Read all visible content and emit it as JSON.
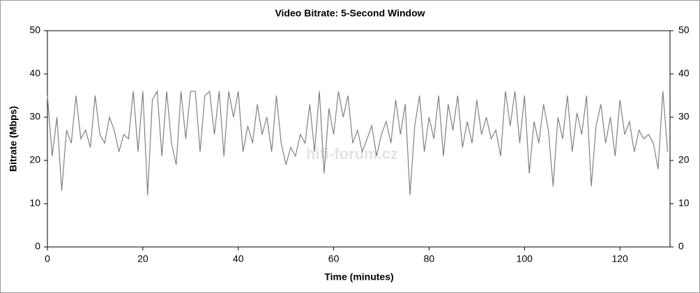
{
  "chart_data": {
    "type": "line",
    "title": "Video Bitrate: 5-Second Window",
    "x_label": "Time (minutes)",
    "y_label": "Bitrate (Mbps)",
    "watermark": "hifi-forum.cz",
    "x": [
      0,
      1,
      2,
      3,
      4,
      5,
      6,
      7,
      8,
      9,
      10,
      11,
      12,
      13,
      14,
      15,
      16,
      17,
      18,
      19,
      20,
      21,
      22,
      23,
      24,
      25,
      26,
      27,
      28,
      29,
      30,
      31,
      32,
      33,
      34,
      35,
      36,
      37,
      38,
      39,
      40,
      41,
      42,
      43,
      44,
      45,
      46,
      47,
      48,
      49,
      50,
      51,
      52,
      53,
      54,
      55,
      56,
      57,
      58,
      59,
      60,
      61,
      62,
      63,
      64,
      65,
      66,
      67,
      68,
      69,
      70,
      71,
      72,
      73,
      74,
      75,
      76,
      77,
      78,
      79,
      80,
      81,
      82,
      83,
      84,
      85,
      86,
      87,
      88,
      89,
      90,
      91,
      92,
      93,
      94,
      95,
      96,
      97,
      98,
      99,
      100,
      101,
      102,
      103,
      104,
      105,
      106,
      107,
      108,
      109,
      110,
      111,
      112,
      113,
      114,
      115,
      116,
      117,
      118,
      119,
      120,
      121,
      122,
      123,
      124,
      125,
      126,
      127,
      128,
      129,
      130
    ],
    "series": [
      {
        "name": "Video Bitrate",
        "color": "#808080",
        "values": [
          35,
          21,
          30,
          13,
          27,
          24,
          35,
          25,
          27,
          23,
          35,
          26,
          24,
          30,
          27,
          22,
          26,
          25,
          36,
          22,
          36,
          12,
          34,
          36,
          21,
          36,
          24,
          19,
          36,
          25,
          36,
          36,
          22,
          35,
          36,
          26,
          36,
          21,
          36,
          30,
          36,
          22,
          28,
          24,
          33,
          26,
          30,
          22,
          35,
          24,
          19,
          23,
          21,
          26,
          24,
          33,
          22,
          36,
          17,
          32,
          26,
          36,
          30,
          35,
          24,
          27,
          22,
          25,
          28,
          21,
          26,
          29,
          24,
          34,
          26,
          33,
          12,
          28,
          35,
          22,
          30,
          25,
          35,
          21,
          33,
          27,
          35,
          23,
          29,
          24,
          34,
          26,
          30,
          25,
          27,
          21,
          36,
          28,
          36,
          24,
          35,
          17,
          29,
          24,
          33,
          27,
          14,
          30,
          25,
          35,
          22,
          31,
          26,
          35,
          14,
          28,
          33,
          24,
          30,
          21,
          34,
          26,
          29,
          22,
          27,
          25,
          26,
          24,
          18,
          36,
          22
        ]
      }
    ],
    "xlim": [
      0,
      130.5
    ],
    "ylim": [
      0,
      50
    ],
    "xticks": [
      0,
      20,
      40,
      60,
      80,
      100,
      120
    ],
    "yticks": [
      0,
      10,
      20,
      30,
      40,
      50
    ],
    "y2ticks": [
      0,
      10,
      20,
      30,
      40,
      50
    ],
    "grid": false
  }
}
